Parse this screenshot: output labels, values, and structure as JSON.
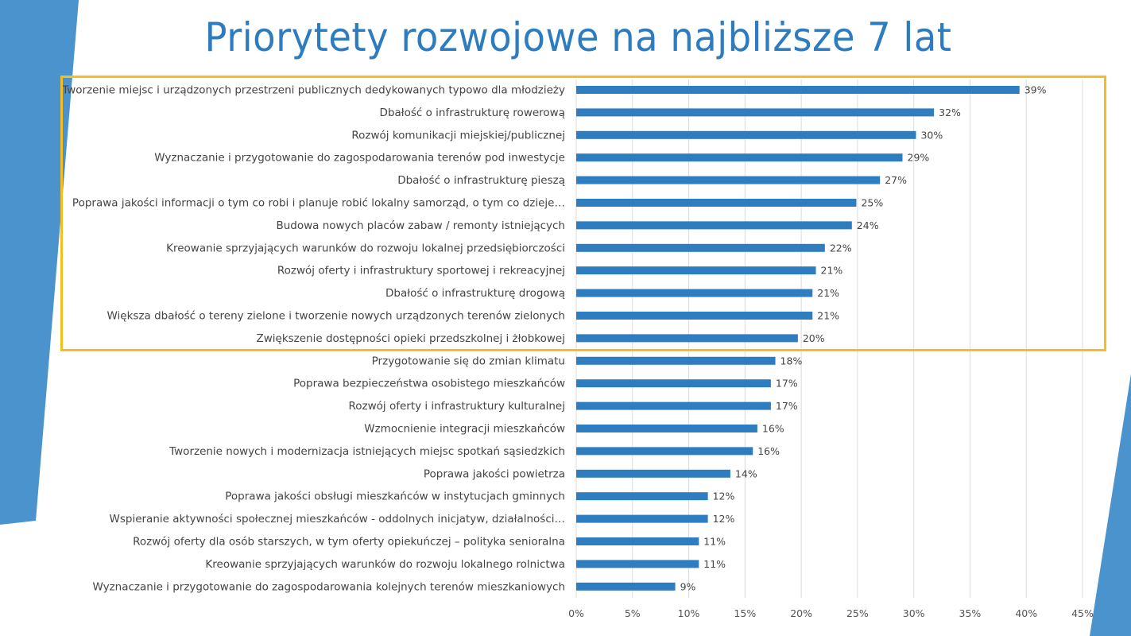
{
  "title": "Priorytety rozwojowe na najbliższe 7 lat",
  "colors": {
    "bar": "#2e7dc1",
    "accent": "#4a93cc",
    "highlight": "#f5bd1f",
    "title": "#2e7cc0"
  },
  "chart_data": {
    "type": "bar",
    "orientation": "horizontal",
    "title": "Priorytety rozwojowe na najbliższe 7 lat",
    "xlabel": "",
    "ylabel": "",
    "xlim": [
      0,
      45
    ],
    "grid": true,
    "ticks": [
      "0%",
      "5%",
      "10%",
      "15%",
      "20%",
      "25%",
      "30%",
      "35%",
      "40%",
      "45%"
    ],
    "categories": [
      "Tworzenie miejsc i urządzonych przestrzeni publicznych dedykowanych typowo dla młodzieży",
      "Dbałość o infrastrukturę rowerową",
      "Rozwój komunikacji miejskiej/publicznej",
      "Wyznaczanie i przygotowanie do zagospodarowania terenów pod inwestycje",
      "Dbałość o infrastrukturę pieszą",
      "Poprawa jakości informacji o tym co robi i planuje robić lokalny samorząd, o tym co dzieje…",
      "Budowa nowych placów zabaw / remonty istniejących",
      "Kreowanie sprzyjających warunków do rozwoju lokalnej przedsiębiorczości",
      "Rozwój oferty i infrastruktury sportowej i rekreacyjnej",
      "Dbałość o infrastrukturę drogową",
      "Większa dbałość o tereny zielone i tworzenie nowych urządzonych terenów zielonych",
      "Zwiększenie dostępności opieki przedszkolnej i żłobkowej",
      "Przygotowanie się do zmian klimatu",
      "Poprawa bezpieczeństwa osobistego mieszkańców",
      "Rozwój oferty i infrastruktury kulturalnej",
      "Wzmocnienie integracji mieszkańców",
      "Tworzenie nowych i modernizacja istniejących miejsc spotkań sąsiedzkich",
      "Poprawa jakości powietrza",
      "Poprawa jakości obsługi mieszkańców w instytucjach gminnych",
      "Wspieranie aktywności społecznej mieszkańców - oddolnych inicjatyw, działalności…",
      "Rozwój oferty dla osób starszych, w tym oferty opiekuńczej – polityka senioralna",
      "Kreowanie sprzyjających warunków do rozwoju lokalnego rolnictwa",
      "Wyznaczanie i przygotowanie do zagospodarowania kolejnych terenów mieszkaniowych"
    ],
    "values": [
      39.4,
      31.8,
      30.2,
      29.0,
      27.0,
      24.9,
      24.5,
      22.1,
      21.3,
      21.0,
      21.0,
      19.7,
      17.7,
      17.3,
      17.3,
      16.1,
      15.7,
      13.7,
      11.7,
      11.7,
      10.9,
      10.9,
      8.8
    ],
    "data_labels": [
      "39%",
      "32%",
      "30%",
      "29%",
      "27%",
      "25%",
      "24%",
      "22%",
      "21%",
      "21%",
      "21%",
      "20%",
      "18%",
      "17%",
      "17%",
      "16%",
      "16%",
      "14%",
      "12%",
      "12%",
      "11%",
      "11%",
      "9%"
    ],
    "highlighted_range": [
      0,
      11
    ]
  }
}
